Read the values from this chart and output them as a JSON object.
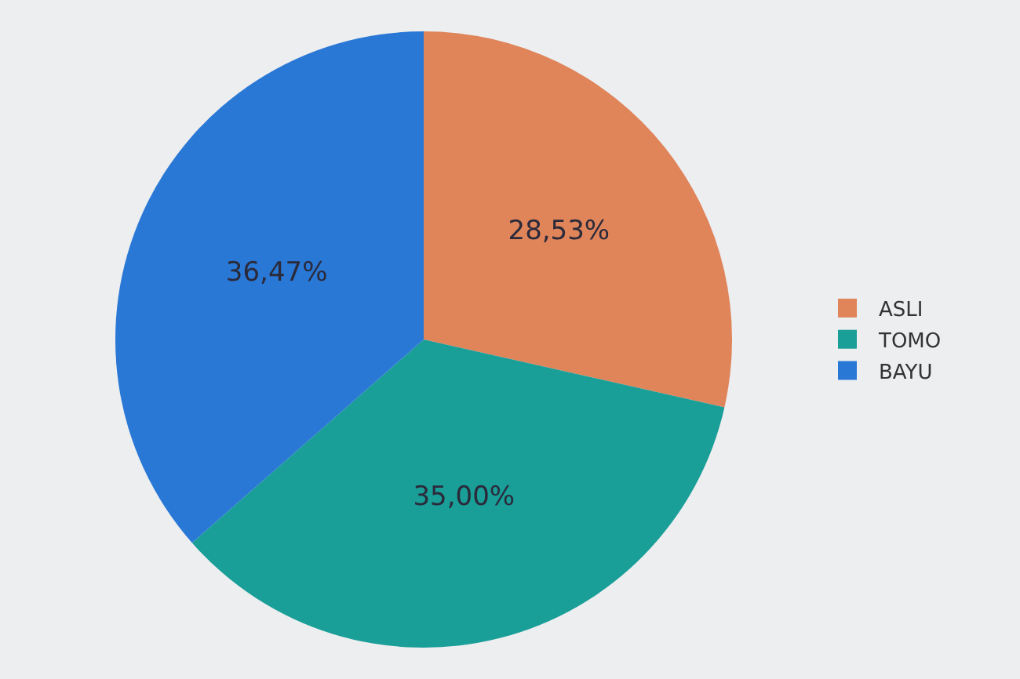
{
  "chart_data": {
    "type": "pie",
    "categories": [
      "ASLI",
      "TOMO",
      "BAYU"
    ],
    "values": [
      28.53,
      35.0,
      36.47
    ],
    "colors": [
      "#e0845a",
      "#1a9e98",
      "#2a78d6"
    ],
    "value_labels": [
      "28,53%",
      "35,00%",
      "36,47%"
    ],
    "legend": "right"
  }
}
